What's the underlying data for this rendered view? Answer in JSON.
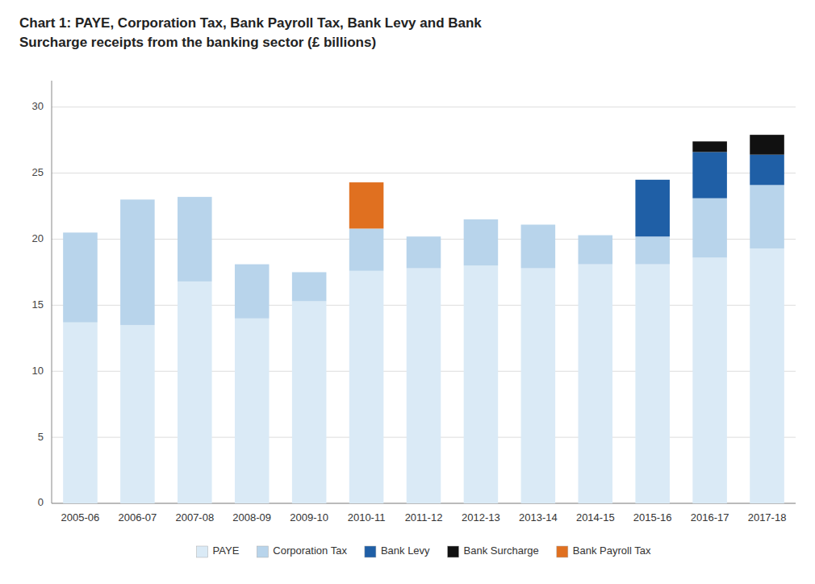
{
  "chart_data": {
    "type": "bar",
    "stacked": true,
    "title": "Chart 1:   PAYE, Corporation Tax, Bank Payroll Tax, Bank Levy and Bank\nSurcharge receipts from the banking sector (£ billions)",
    "categories": [
      "2005-06",
      "2006-07",
      "2007-08",
      "2008-09",
      "2009-10",
      "2010-11",
      "2011-12",
      "2012-13",
      "2013-14",
      "2014-15",
      "2015-16",
      "2016-17",
      "2017-18"
    ],
    "series": [
      {
        "name": "PAYE",
        "color": "#daeaf6",
        "values": [
          13.7,
          13.5,
          16.8,
          14.0,
          15.3,
          17.6,
          17.8,
          18.0,
          17.8,
          18.1,
          18.1,
          18.6,
          19.3
        ]
      },
      {
        "name": "Corporation Tax",
        "color": "#b8d4eb",
        "values": [
          6.8,
          9.5,
          6.4,
          4.1,
          2.2,
          3.2,
          2.4,
          3.5,
          3.3,
          2.2,
          2.1,
          4.5,
          4.8
        ]
      },
      {
        "name": "Bank Levy",
        "color": "#1f5fa6",
        "values": [
          0.0,
          0.0,
          0.0,
          0.0,
          0.0,
          0.0,
          0.0,
          0.0,
          0.0,
          0.0,
          4.3,
          3.5,
          2.3
        ]
      },
      {
        "name": "Bank Surcharge",
        "color": "#111111",
        "values": [
          0.0,
          0.0,
          0.0,
          0.0,
          0.0,
          0.0,
          0.0,
          0.0,
          0.0,
          0.0,
          0.0,
          0.8,
          1.5
        ]
      },
      {
        "name": "Bank Payroll Tax",
        "color": "#e07020",
        "values": [
          0.0,
          0.0,
          0.0,
          0.0,
          0.0,
          3.5,
          0.0,
          0.0,
          0.0,
          0.0,
          0.0,
          0.0,
          0.0
        ]
      }
    ],
    "ylim": [
      0,
      32
    ],
    "yticks": [
      0,
      5,
      10,
      15,
      20,
      25,
      30
    ],
    "grid": true,
    "legend": "bottom"
  }
}
